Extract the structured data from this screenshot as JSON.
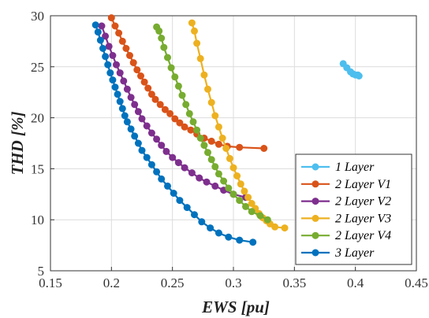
{
  "chart_data": {
    "type": "line",
    "xlabel": "EWS [pu]",
    "ylabel": "THD [%]",
    "xlim": [
      0.15,
      0.45
    ],
    "ylim": [
      5,
      30
    ],
    "xticks": [
      0.15,
      0.2,
      0.25,
      0.3,
      0.35,
      0.4,
      0.45
    ],
    "yticks": [
      5,
      10,
      15,
      20,
      25,
      30
    ],
    "xtick_labels": [
      "0.15",
      "0.2",
      "0.25",
      "0.3",
      "0.35",
      "0.4",
      "0.45"
    ],
    "ytick_labels": [
      "5",
      "10",
      "15",
      "20",
      "25",
      "30"
    ],
    "grid": true,
    "legend_position": "lower-right",
    "series": [
      {
        "name": "1 Layer",
        "color": "#4DBEEE",
        "x": [
          0.39,
          0.393,
          0.396,
          0.398,
          0.4,
          0.402,
          0.403
        ],
        "y": [
          25.3,
          24.9,
          24.5,
          24.3,
          24.2,
          24.2,
          24.1
        ]
      },
      {
        "name": "2 Layer V1",
        "color": "#D95319",
        "x": [
          0.2,
          0.203,
          0.206,
          0.209,
          0.212,
          0.215,
          0.218,
          0.221,
          0.224,
          0.227,
          0.23,
          0.233,
          0.236,
          0.24,
          0.244,
          0.248,
          0.252,
          0.256,
          0.26,
          0.265,
          0.27,
          0.276,
          0.282,
          0.288,
          0.295,
          0.305,
          0.325
        ],
        "y": [
          29.8,
          29.0,
          28.3,
          27.5,
          26.8,
          26.1,
          25.4,
          24.7,
          24.1,
          23.5,
          22.9,
          22.3,
          21.8,
          21.3,
          20.8,
          20.4,
          19.9,
          19.5,
          19.1,
          18.8,
          18.4,
          18.0,
          17.7,
          17.4,
          17.2,
          17.1,
          17.0
        ]
      },
      {
        "name": "2 Layer V2",
        "color": "#7E2F8E",
        "x": [
          0.192,
          0.195,
          0.198,
          0.201,
          0.204,
          0.207,
          0.21,
          0.213,
          0.216,
          0.219,
          0.222,
          0.225,
          0.229,
          0.233,
          0.237,
          0.241,
          0.245,
          0.25,
          0.255,
          0.26,
          0.266,
          0.272,
          0.278,
          0.285,
          0.292,
          0.3,
          0.31
        ],
        "y": [
          29.0,
          28.0,
          27.0,
          26.1,
          25.2,
          24.4,
          23.6,
          22.8,
          22.0,
          21.3,
          20.6,
          19.9,
          19.2,
          18.5,
          17.9,
          17.3,
          16.7,
          16.1,
          15.6,
          15.1,
          14.6,
          14.1,
          13.7,
          13.3,
          12.9,
          12.5,
          12.2
        ]
      },
      {
        "name": "2 Layer V3",
        "color": "#EDB120",
        "x": [
          0.266,
          0.268,
          0.27,
          0.273,
          0.276,
          0.279,
          0.282,
          0.285,
          0.288,
          0.291,
          0.294,
          0.297,
          0.3,
          0.303,
          0.306,
          0.309,
          0.312,
          0.315,
          0.318,
          0.321,
          0.324,
          0.327,
          0.33,
          0.334,
          0.342
        ],
        "y": [
          29.3,
          28.5,
          27.3,
          25.8,
          24.2,
          22.8,
          21.5,
          20.2,
          19.1,
          18.0,
          17.0,
          16.0,
          15.1,
          14.3,
          13.5,
          12.8,
          12.2,
          11.6,
          11.1,
          10.6,
          10.2,
          9.9,
          9.6,
          9.3,
          9.2
        ]
      },
      {
        "name": "2 Layer V4",
        "color": "#77AC30",
        "x": [
          0.237,
          0.239,
          0.241,
          0.243,
          0.246,
          0.249,
          0.252,
          0.255,
          0.258,
          0.261,
          0.264,
          0.267,
          0.27,
          0.273,
          0.276,
          0.279,
          0.282,
          0.285,
          0.288,
          0.292,
          0.296,
          0.3,
          0.305,
          0.31,
          0.315,
          0.322,
          0.328
        ],
        "y": [
          28.9,
          28.5,
          27.8,
          26.9,
          25.9,
          24.9,
          24.0,
          23.1,
          22.2,
          21.3,
          20.4,
          19.6,
          18.8,
          18.0,
          17.3,
          16.6,
          15.9,
          15.2,
          14.5,
          13.8,
          13.1,
          12.5,
          11.9,
          11.3,
          10.8,
          10.4,
          10.0
        ]
      },
      {
        "name": "3 Layer",
        "color": "#0072BD",
        "x": [
          0.187,
          0.189,
          0.191,
          0.193,
          0.195,
          0.197,
          0.199,
          0.201,
          0.203,
          0.205,
          0.207,
          0.209,
          0.211,
          0.213,
          0.216,
          0.219,
          0.222,
          0.225,
          0.229,
          0.233,
          0.237,
          0.241,
          0.246,
          0.251,
          0.256,
          0.262,
          0.268,
          0.274,
          0.281,
          0.288,
          0.296,
          0.305,
          0.316
        ],
        "y": [
          29.1,
          28.4,
          27.6,
          26.8,
          26.0,
          25.2,
          24.4,
          23.7,
          23.0,
          22.3,
          21.6,
          20.9,
          20.2,
          19.6,
          18.9,
          18.2,
          17.5,
          16.8,
          16.1,
          15.4,
          14.7,
          14.0,
          13.3,
          12.6,
          11.9,
          11.2,
          10.5,
          9.8,
          9.2,
          8.7,
          8.3,
          8.0,
          7.8
        ]
      }
    ]
  }
}
